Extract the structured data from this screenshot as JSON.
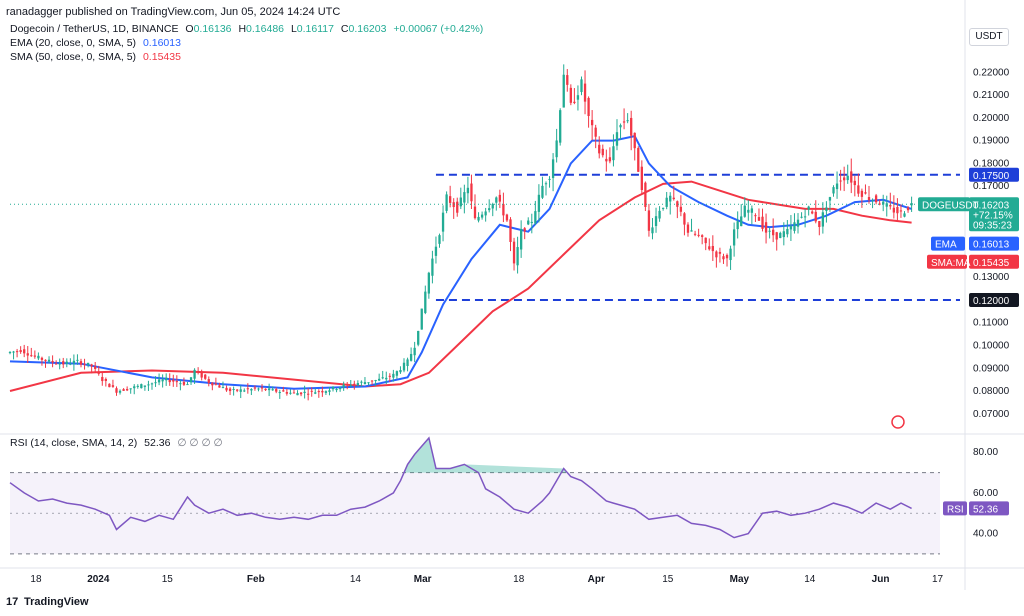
{
  "header": {
    "publisher": "ranadagger published on TradingView.com, Jun 05, 2024 14:24 UTC"
  },
  "legend": {
    "symbol": "Dogecoin / TetherUS, 1D, BINANCE",
    "ohlc": {
      "o_label": "O",
      "o": "0.16136",
      "h_label": "H",
      "h": "0.16486",
      "l_label": "L",
      "l": "0.16117",
      "c_label": "C",
      "c": "0.16203",
      "change": "+0.00067 (+0.42%)"
    },
    "ema": {
      "label": "EMA (20, close, 0, SMA, 5)",
      "value": "0.16013"
    },
    "sma": {
      "label": "SMA (50, close, 0, SMA, 5)",
      "value": "0.15435"
    },
    "rsi": {
      "label": "RSI (14, close, SMA, 14, 2)",
      "value": "52.36",
      "extra": "∅ ∅ ∅ ∅"
    }
  },
  "quote_currency": "USDT",
  "price_labels": {
    "symbol_tag": "DOGEUSDT",
    "price": "0.16203",
    "change_pct": "+72.15%",
    "countdown": "09:35:23",
    "ema_tag": "EMA",
    "ema_value": "0.16013",
    "sma_tag": "SMA:MA",
    "sma_value": "0.15435",
    "resistance": "0.17500",
    "support": "0.12000",
    "rsi_tag": "RSI",
    "rsi_value": "52.36"
  },
  "branding": {
    "text": "TradingView",
    "mark": "17"
  },
  "colors": {
    "up": "#22ab94",
    "down": "#f23645",
    "ema": "#2962ff",
    "sma": "#f23645",
    "rsi": "#7e57c2",
    "level_line": "#1e3fd8"
  },
  "chart_data": [
    {
      "type": "candlestick",
      "title": "Dogecoin / TetherUS, 1D, BINANCE",
      "y_ticks": [
        0.07,
        0.08,
        0.09,
        0.1,
        0.11,
        0.12,
        0.13,
        0.17,
        0.18,
        0.19,
        0.2,
        0.21,
        0.22
      ],
      "y_tick_labels": [
        "0.07000",
        "0.08000",
        "0.09000",
        "0.10000",
        "0.11000",
        "0.12000",
        "0.13000",
        "0.17000",
        "0.18000",
        "0.19000",
        "0.20000",
        "0.21000",
        "0.22000"
      ],
      "ylim": [
        0.062,
        0.232
      ],
      "x_tick_labels": [
        "18",
        "2024",
        "15",
        "Feb",
        "14",
        "Mar",
        "18",
        "Apr",
        "15",
        "May",
        "14",
        "Jun",
        "17"
      ],
      "horizontal_levels": [
        0.175,
        0.12
      ],
      "price_path": [
        [
          0,
          0.097
        ],
        [
          3,
          0.098
        ],
        [
          7,
          0.095
        ],
        [
          11,
          0.093
        ],
        [
          15,
          0.092
        ],
        [
          19,
          0.093
        ],
        [
          23,
          0.091
        ],
        [
          26,
          0.085
        ],
        [
          30,
          0.08
        ],
        [
          36,
          0.082
        ],
        [
          44,
          0.085
        ],
        [
          50,
          0.083
        ],
        [
          52,
          0.089
        ],
        [
          56,
          0.084
        ],
        [
          62,
          0.08
        ],
        [
          70,
          0.081
        ],
        [
          80,
          0.079
        ],
        [
          88,
          0.08
        ],
        [
          96,
          0.083
        ],
        [
          104,
          0.085
        ],
        [
          108,
          0.087
        ],
        [
          112,
          0.093
        ],
        [
          114,
          0.1
        ],
        [
          116,
          0.115
        ],
        [
          118,
          0.132
        ],
        [
          121,
          0.15
        ],
        [
          123,
          0.165
        ],
        [
          126,
          0.16
        ],
        [
          129,
          0.17
        ],
        [
          131,
          0.155
        ],
        [
          134,
          0.16
        ],
        [
          137,
          0.165
        ],
        [
          140,
          0.155
        ],
        [
          142,
          0.135
        ],
        [
          144,
          0.15
        ],
        [
          147,
          0.155
        ],
        [
          150,
          0.17
        ],
        [
          152,
          0.175
        ],
        [
          154,
          0.19
        ],
        [
          156,
          0.22
        ],
        [
          158,
          0.205
        ],
        [
          161,
          0.215
        ],
        [
          163,
          0.2
        ],
        [
          166,
          0.185
        ],
        [
          169,
          0.18
        ],
        [
          171,
          0.195
        ],
        [
          174,
          0.2
        ],
        [
          176,
          0.185
        ],
        [
          178,
          0.17
        ],
        [
          180,
          0.15
        ],
        [
          183,
          0.16
        ],
        [
          186,
          0.165
        ],
        [
          189,
          0.158
        ],
        [
          191,
          0.15
        ],
        [
          194,
          0.148
        ],
        [
          197,
          0.143
        ],
        [
          199,
          0.14
        ],
        [
          202,
          0.138
        ],
        [
          204,
          0.15
        ],
        [
          207,
          0.16
        ],
        [
          210,
          0.158
        ],
        [
          213,
          0.15
        ],
        [
          216,
          0.148
        ],
        [
          219,
          0.15
        ],
        [
          222,
          0.155
        ],
        [
          225,
          0.16
        ],
        [
          228,
          0.153
        ],
        [
          230,
          0.162
        ],
        [
          233,
          0.172
        ],
        [
          236,
          0.175
        ],
        [
          239,
          0.168
        ],
        [
          242,
          0.165
        ],
        [
          245,
          0.163
        ],
        [
          248,
          0.16
        ],
        [
          251,
          0.158
        ],
        [
          254,
          0.162
        ]
      ],
      "ema_path": [
        [
          0,
          0.093
        ],
        [
          20,
          0.092
        ],
        [
          40,
          0.086
        ],
        [
          60,
          0.083
        ],
        [
          80,
          0.081
        ],
        [
          100,
          0.082
        ],
        [
          112,
          0.086
        ],
        [
          116,
          0.097
        ],
        [
          122,
          0.118
        ],
        [
          130,
          0.138
        ],
        [
          138,
          0.153
        ],
        [
          146,
          0.15
        ],
        [
          152,
          0.16
        ],
        [
          158,
          0.18
        ],
        [
          164,
          0.19
        ],
        [
          170,
          0.19
        ],
        [
          176,
          0.192
        ],
        [
          180,
          0.18
        ],
        [
          186,
          0.17
        ],
        [
          194,
          0.163
        ],
        [
          202,
          0.157
        ],
        [
          208,
          0.153
        ],
        [
          214,
          0.152
        ],
        [
          222,
          0.153
        ],
        [
          230,
          0.157
        ],
        [
          238,
          0.163
        ],
        [
          246,
          0.164
        ],
        [
          254,
          0.16
        ]
      ],
      "sma_path": [
        [
          0,
          0.08
        ],
        [
          20,
          0.088
        ],
        [
          40,
          0.089
        ],
        [
          60,
          0.088
        ],
        [
          80,
          0.085
        ],
        [
          100,
          0.082
        ],
        [
          110,
          0.083
        ],
        [
          118,
          0.088
        ],
        [
          126,
          0.1
        ],
        [
          136,
          0.115
        ],
        [
          146,
          0.125
        ],
        [
          156,
          0.14
        ],
        [
          166,
          0.155
        ],
        [
          176,
          0.165
        ],
        [
          184,
          0.171
        ],
        [
          192,
          0.172
        ],
        [
          200,
          0.168
        ],
        [
          208,
          0.164
        ],
        [
          216,
          0.162
        ],
        [
          224,
          0.16
        ],
        [
          232,
          0.16
        ],
        [
          240,
          0.157
        ],
        [
          248,
          0.155
        ],
        [
          254,
          0.154
        ]
      ]
    },
    {
      "type": "line",
      "title": "RSI (14, close, SMA, 14, 2)",
      "y_ticks": [
        40,
        60,
        80
      ],
      "y_tick_labels": [
        "40.00",
        "60.00",
        "80.00"
      ],
      "ylim": [
        27,
        87
      ],
      "overbought": 70,
      "oversold": 30,
      "values": [
        [
          0,
          65
        ],
        [
          4,
          60
        ],
        [
          8,
          56
        ],
        [
          12,
          57
        ],
        [
          16,
          55
        ],
        [
          20,
          54
        ],
        [
          24,
          52
        ],
        [
          28,
          49
        ],
        [
          30,
          42
        ],
        [
          34,
          48
        ],
        [
          38,
          46
        ],
        [
          42,
          49
        ],
        [
          46,
          47
        ],
        [
          50,
          58
        ],
        [
          52,
          54
        ],
        [
          56,
          50
        ],
        [
          60,
          52
        ],
        [
          64,
          49
        ],
        [
          68,
          50
        ],
        [
          72,
          48
        ],
        [
          76,
          47
        ],
        [
          80,
          48
        ],
        [
          84,
          47
        ],
        [
          88,
          49
        ],
        [
          92,
          49
        ],
        [
          96,
          52
        ],
        [
          100,
          53
        ],
        [
          104,
          56
        ],
        [
          108,
          60
        ],
        [
          110,
          66
        ],
        [
          112,
          74
        ],
        [
          114,
          79
        ],
        [
          116,
          83
        ],
        [
          118,
          87
        ],
        [
          120,
          72
        ],
        [
          124,
          72
        ],
        [
          128,
          74
        ],
        [
          132,
          70
        ],
        [
          134,
          62
        ],
        [
          138,
          58
        ],
        [
          142,
          52
        ],
        [
          146,
          50
        ],
        [
          150,
          56
        ],
        [
          152,
          60
        ],
        [
          154,
          66
        ],
        [
          156,
          72
        ],
        [
          158,
          68
        ],
        [
          161,
          66
        ],
        [
          164,
          62
        ],
        [
          168,
          56
        ],
        [
          170,
          55
        ],
        [
          172,
          54
        ],
        [
          176,
          52
        ],
        [
          180,
          47
        ],
        [
          184,
          48
        ],
        [
          188,
          49
        ],
        [
          192,
          45
        ],
        [
          196,
          44
        ],
        [
          200,
          42
        ],
        [
          204,
          38
        ],
        [
          208,
          40
        ],
        [
          212,
          50
        ],
        [
          216,
          51
        ],
        [
          220,
          49
        ],
        [
          224,
          50
        ],
        [
          228,
          52
        ],
        [
          232,
          55
        ],
        [
          236,
          53
        ],
        [
          240,
          50
        ],
        [
          244,
          55
        ],
        [
          248,
          52
        ],
        [
          251,
          55
        ],
        [
          254,
          52.36
        ]
      ]
    }
  ]
}
